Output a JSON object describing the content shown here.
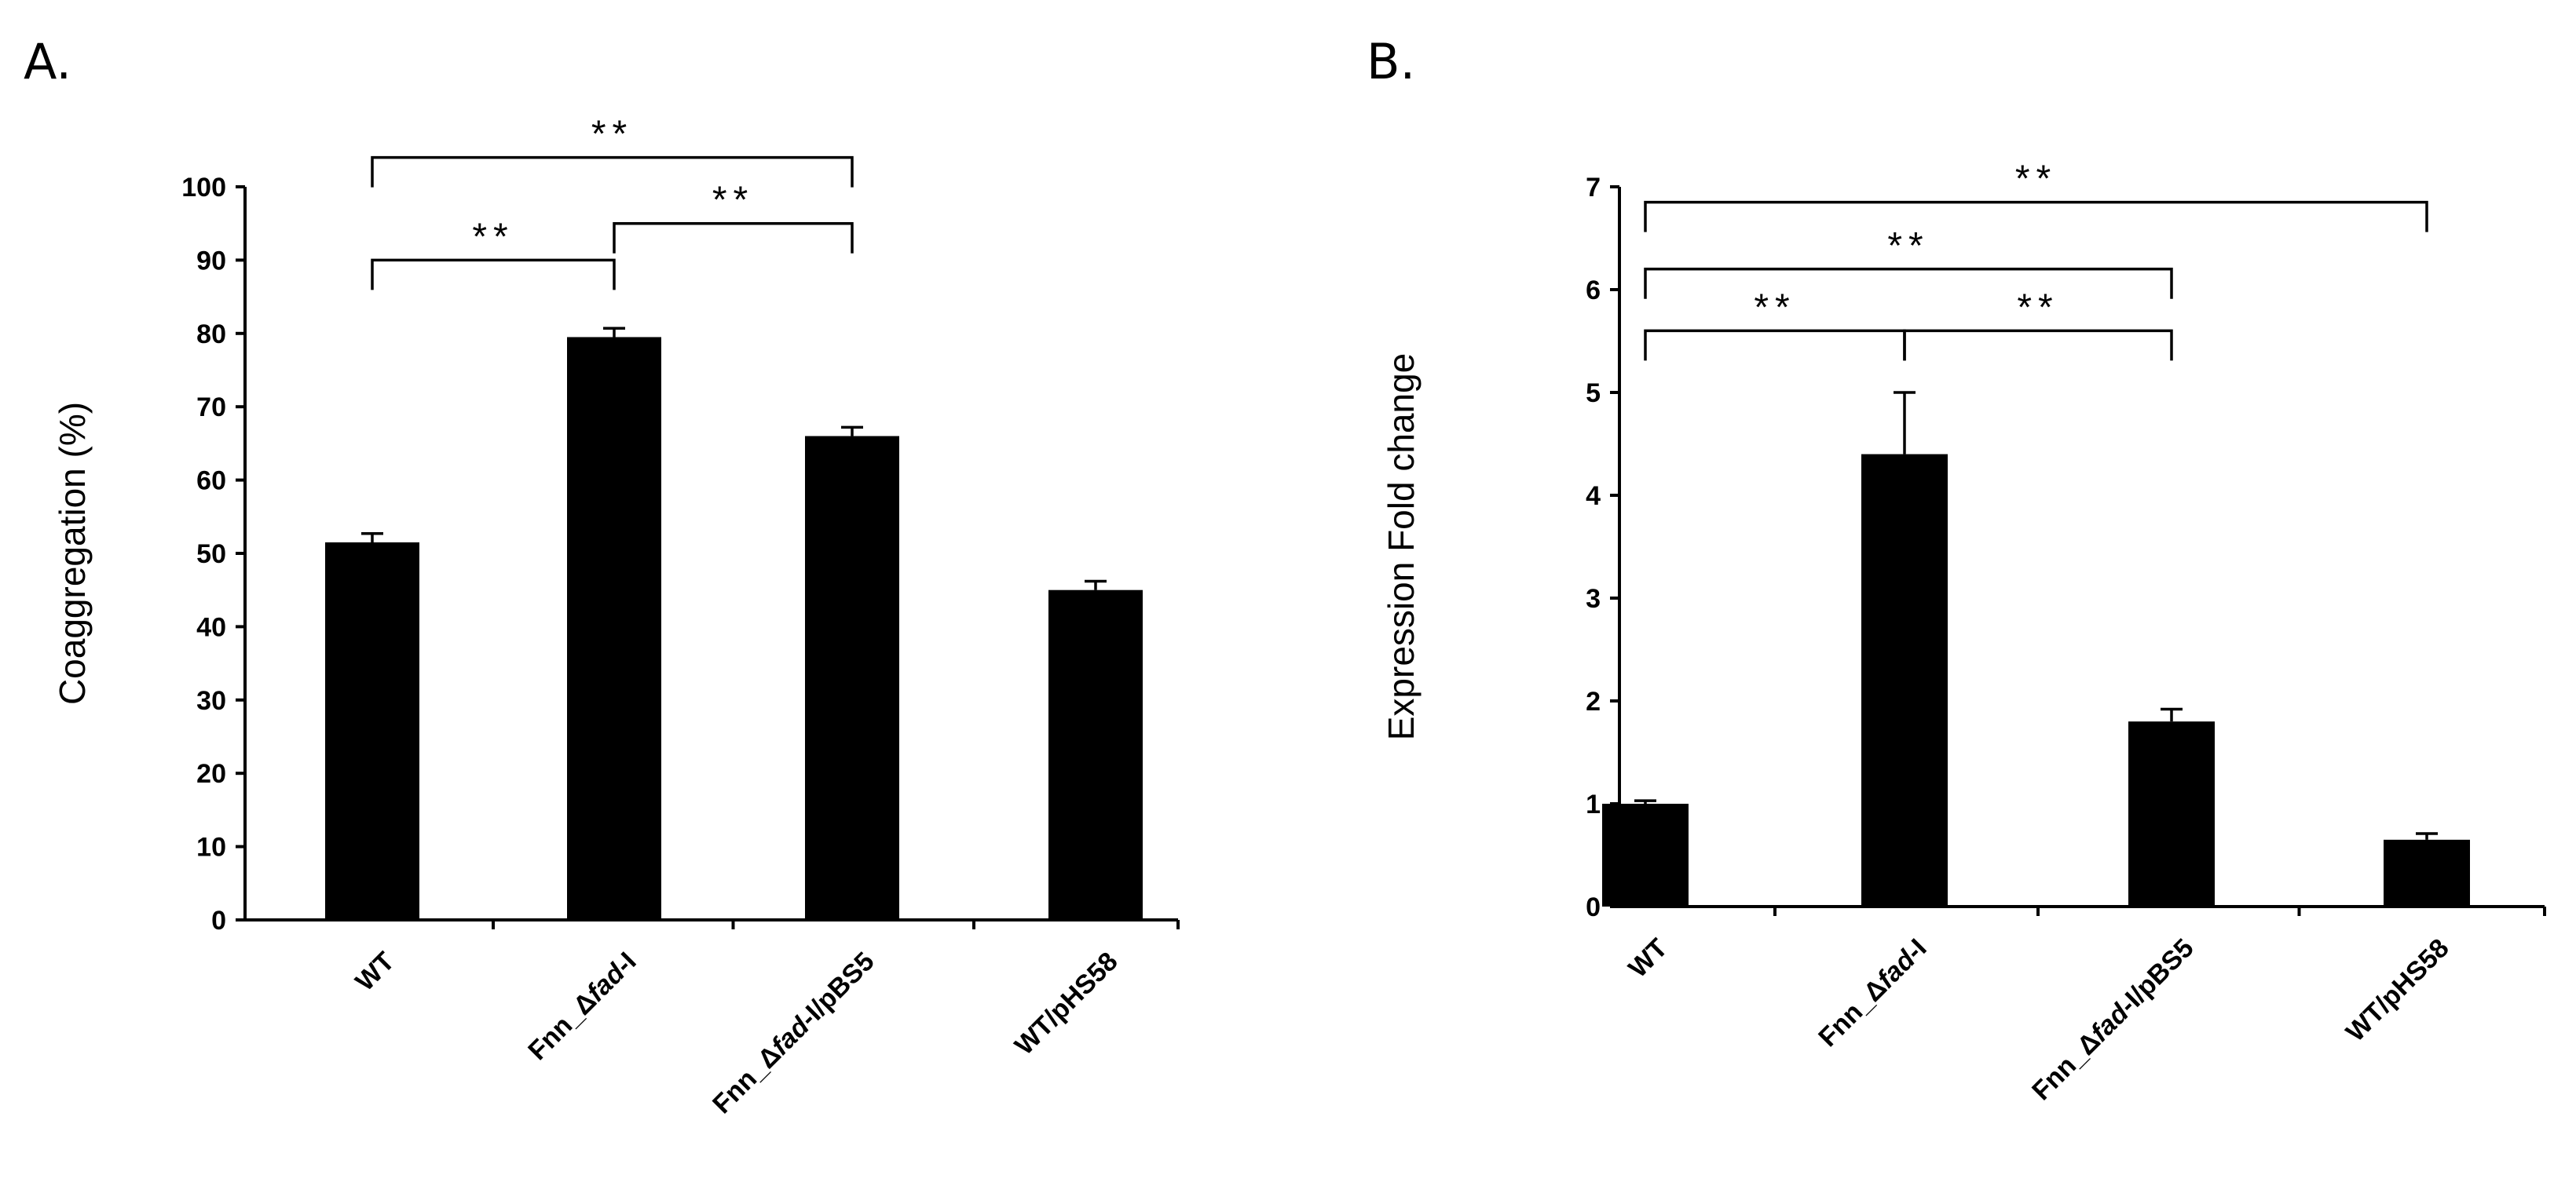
{
  "chart_data": [
    {
      "panel": "A.",
      "type": "bar",
      "categories": [
        {
          "pre": "WT",
          "it": "",
          "post": ""
        },
        {
          "pre": "Fnn_Δ",
          "it": "fad",
          "post": "-I"
        },
        {
          "pre": "Fnn_Δ",
          "it": "fad",
          "post": "-I/pBS5"
        },
        {
          "pre": "WT/pHS58",
          "it": "",
          "post": ""
        }
      ],
      "values": [
        51.5,
        79.5,
        66,
        45
      ],
      "errors": [
        1.2,
        1.2,
        1.2,
        1.2
      ],
      "ylabel": "Coaggregation (%)",
      "ylim": [
        0,
        100
      ],
      "yticks": [
        0,
        10,
        20,
        30,
        40,
        50,
        60,
        70,
        80,
        90,
        100
      ],
      "significance": [
        {
          "from": 0,
          "to": 1,
          "label": "**",
          "level": 90
        },
        {
          "from": 1,
          "to": 2,
          "label": "**",
          "level": 95
        },
        {
          "from": 0,
          "to": 2,
          "label": "**",
          "level": 104
        }
      ]
    },
    {
      "panel": "B.",
      "type": "bar",
      "categories": [
        {
          "pre": "WT",
          "it": "",
          "post": ""
        },
        {
          "pre": "Fnn_Δ",
          "it": "fad",
          "post": "-I"
        },
        {
          "pre": "Fnn_Δ",
          "it": "fad",
          "post": "-I/pBS5"
        },
        {
          "pre": "WT/pHS58",
          "it": "",
          "post": ""
        }
      ],
      "values": [
        1.0,
        4.4,
        1.8,
        0.65
      ],
      "errors": [
        0.03,
        0.6,
        0.12,
        0.06
      ],
      "ylabel": "Expression Fold change",
      "ylim": [
        0,
        7
      ],
      "yticks": [
        0,
        1,
        2,
        3,
        4,
        5,
        6,
        7
      ],
      "significance": [
        {
          "from": 0,
          "to": 1,
          "label": "**",
          "level": 5.6
        },
        {
          "from": 1,
          "to": 2,
          "label": "**",
          "level": 5.6
        },
        {
          "from": 0,
          "to": 2,
          "label": "**",
          "level": 6.2
        },
        {
          "from": 0,
          "to": 3,
          "label": "**",
          "level": 6.85
        }
      ]
    }
  ]
}
